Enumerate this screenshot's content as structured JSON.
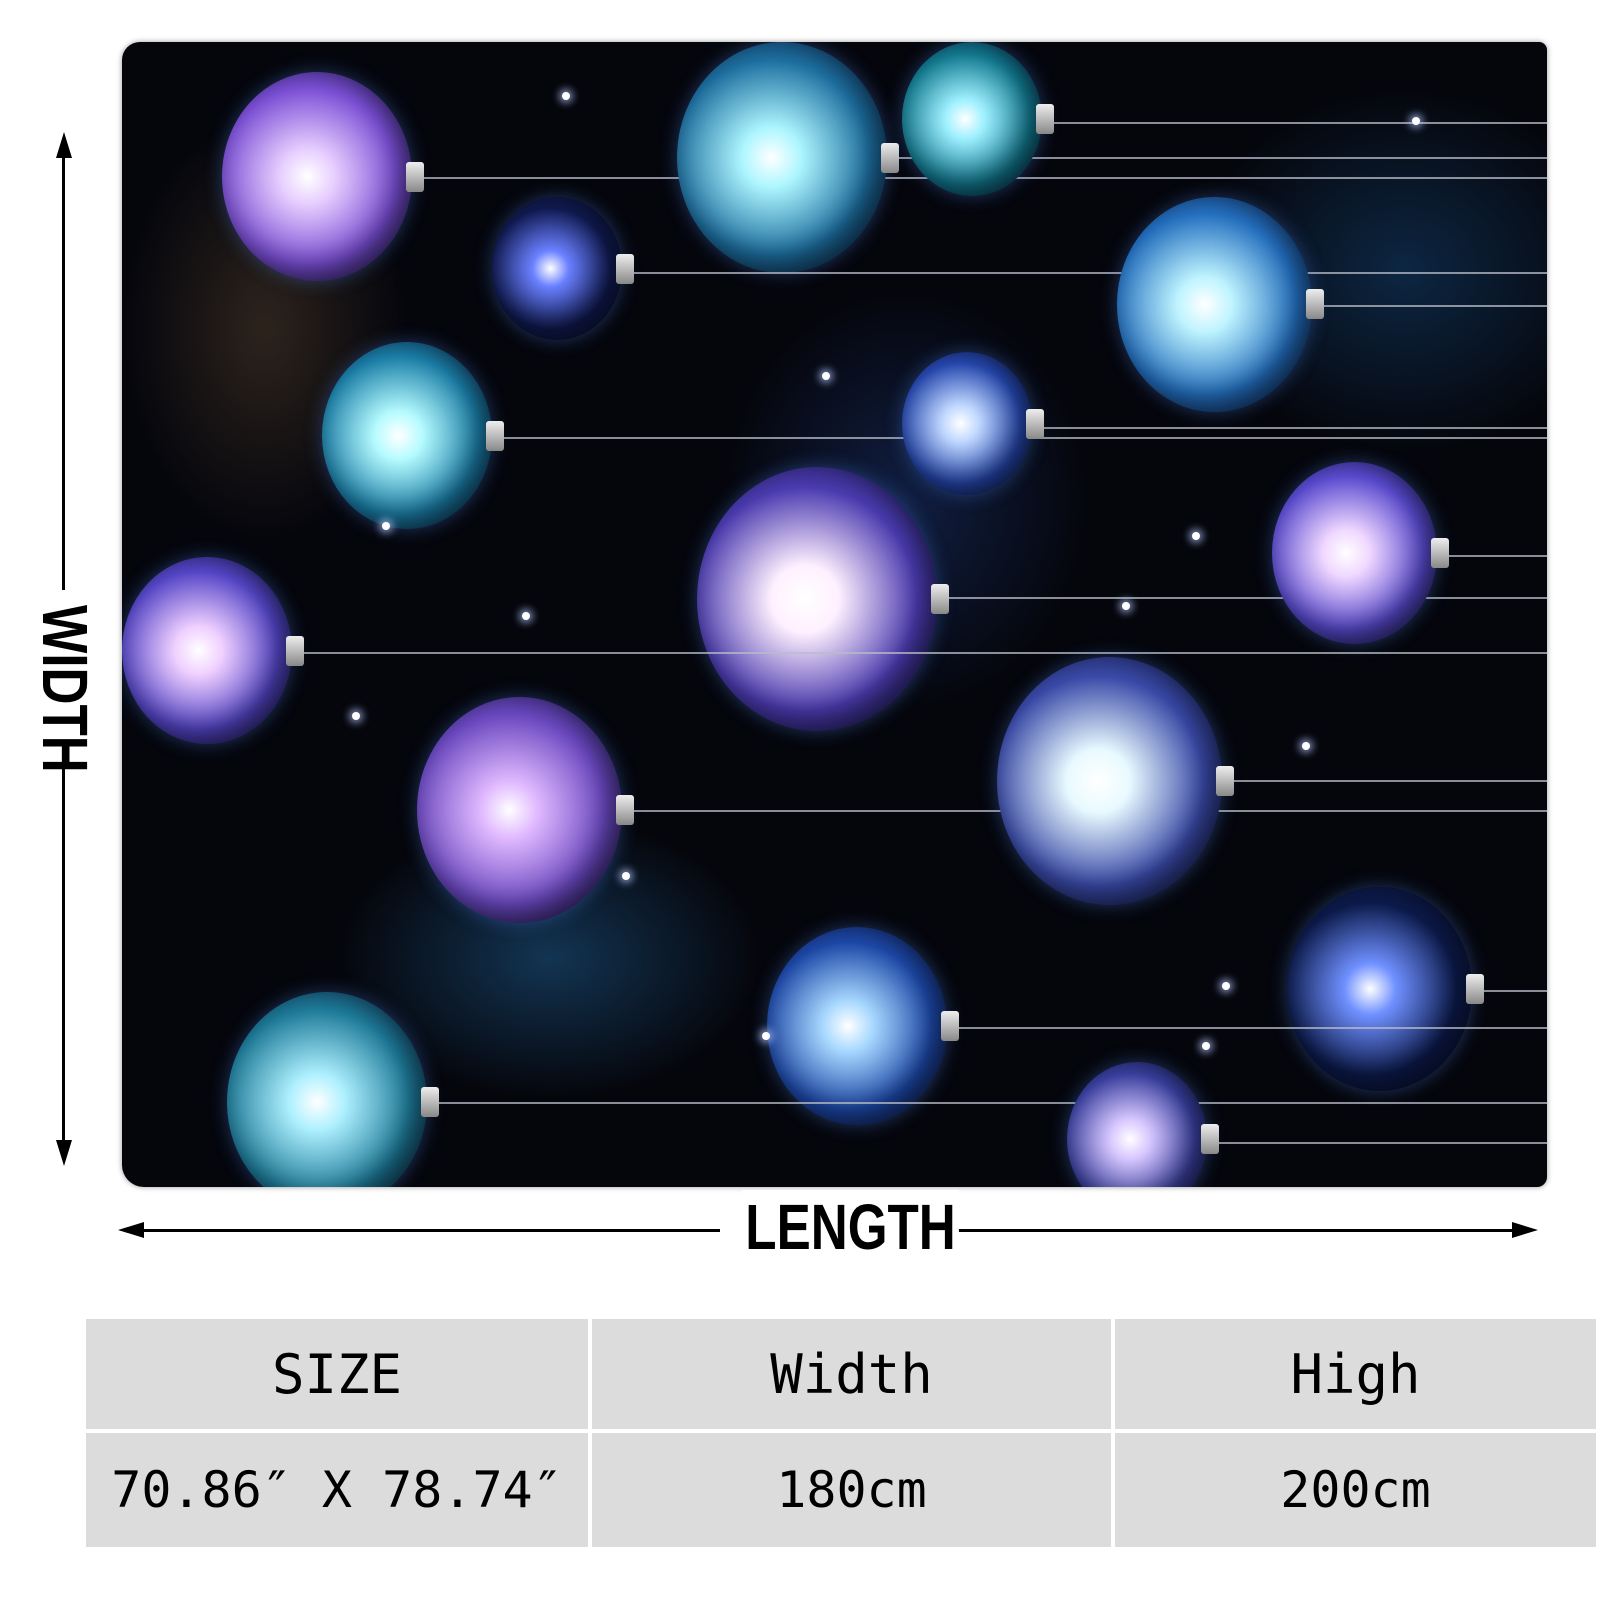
{
  "dimension_labels": {
    "width": "WIDTH",
    "length": "LENGTH"
  },
  "size_table": {
    "headers": [
      "SIZE",
      "Width",
      "High"
    ],
    "rows": [
      [
        "70.86″ X 78.74″",
        "180cm",
        "200cm"
      ]
    ]
  },
  "colors": {
    "background": "#05060c",
    "table_cell": "#dcdcdc",
    "text": "#000000"
  }
}
